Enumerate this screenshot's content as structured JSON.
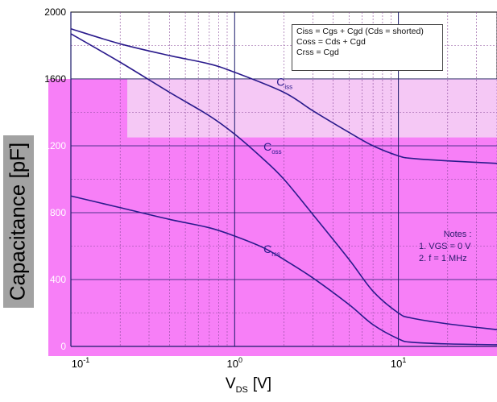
{
  "chart_data": {
    "type": "line",
    "x_scale": "log",
    "xlim": [
      0.1,
      40
    ],
    "ylim": [
      0,
      2000
    ],
    "x_ticks": [
      0.1,
      1,
      10
    ],
    "x_tick_labels": [
      "10-1",
      "100",
      "101"
    ],
    "y_ticks": [
      0,
      400,
      800,
      1200,
      1600,
      2000
    ],
    "y_tick_labels": [
      "0",
      "400",
      "800",
      "1200",
      "1600",
      "2000"
    ],
    "xlabel": "VDS [V]",
    "ylabel": "Capacitance [pF]",
    "grid": true,
    "series": [
      {
        "name": "Ciss",
        "label": "Ciss",
        "x": [
          0.1,
          0.2,
          0.4,
          0.7,
          1.0,
          2.0,
          3.0,
          5.0,
          7.0,
          10.0,
          12.0,
          20.0,
          40.0
        ],
        "y": [
          1900,
          1810,
          1740,
          1690,
          1640,
          1520,
          1410,
          1280,
          1200,
          1140,
          1125,
          1110,
          1095
        ]
      },
      {
        "name": "Coss",
        "label": "Coss",
        "x": [
          0.1,
          0.2,
          0.4,
          0.7,
          1.0,
          1.5,
          2.0,
          3.0,
          5.0,
          7.0,
          10.0,
          12.0,
          20.0,
          40.0
        ],
        "y": [
          1870,
          1700,
          1520,
          1380,
          1270,
          1120,
          1000,
          790,
          520,
          330,
          200,
          170,
          135,
          100
        ]
      },
      {
        "name": "Crss",
        "label": "Crss",
        "x": [
          0.1,
          0.2,
          0.4,
          0.7,
          1.0,
          1.5,
          2.0,
          3.0,
          5.0,
          7.0,
          10.0,
          12.0,
          20.0,
          40.0
        ],
        "y": [
          900,
          830,
          760,
          710,
          660,
          590,
          520,
          410,
          250,
          130,
          45,
          25,
          15,
          10
        ]
      }
    ]
  },
  "legend_lines": [
    "Ciss = Cgs + Cgd (Cds = shorted)",
    "Coss = Cds + Cgd",
    "Crss = Cgd"
  ],
  "notes": {
    "title": "Notes :",
    "line1": "1. VGS = 0 V",
    "line2": "2. f = 1 MHz"
  },
  "colors": {
    "plot_bg": "#f77ff7",
    "plot_bg_upper": "#f5c8f5",
    "curve": "#2a1a8c",
    "grid": "#8a4a9a"
  }
}
